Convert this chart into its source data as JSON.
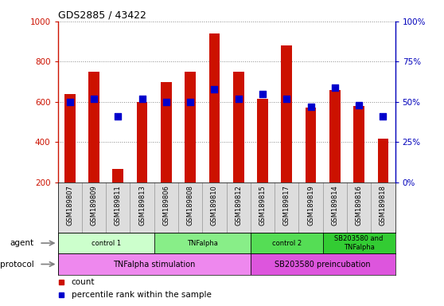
{
  "title": "GDS2885 / 43422",
  "samples": [
    "GSM189807",
    "GSM189809",
    "GSM189811",
    "GSM189813",
    "GSM189806",
    "GSM189808",
    "GSM189810",
    "GSM189812",
    "GSM189815",
    "GSM189817",
    "GSM189819",
    "GSM189814",
    "GSM189816",
    "GSM189818"
  ],
  "counts": [
    640,
    750,
    265,
    600,
    700,
    750,
    940,
    750,
    615,
    880,
    570,
    660,
    580,
    415
  ],
  "percentile_ranks": [
    50,
    52,
    41,
    52,
    50,
    50,
    58,
    52,
    55,
    52,
    47,
    59,
    48,
    41
  ],
  "ylim_left": [
    200,
    1000
  ],
  "ylim_right": [
    0,
    100
  ],
  "yticks_left": [
    200,
    400,
    600,
    800,
    1000
  ],
  "yticks_right": [
    0,
    25,
    50,
    75,
    100
  ],
  "agent_groups": [
    {
      "label": "control 1",
      "start": 0,
      "end": 4,
      "color": "#ccffcc"
    },
    {
      "label": "TNFalpha",
      "start": 4,
      "end": 8,
      "color": "#88ee88"
    },
    {
      "label": "control 2",
      "start": 8,
      "end": 11,
      "color": "#55dd55"
    },
    {
      "label": "SB203580 and\nTNFalpha",
      "start": 11,
      "end": 14,
      "color": "#33cc33"
    }
  ],
  "protocol_groups": [
    {
      "label": "TNFalpha stimulation",
      "start": 0,
      "end": 8,
      "color": "#ee88ee"
    },
    {
      "label": "SB203580 preincubation",
      "start": 8,
      "end": 14,
      "color": "#dd55dd"
    }
  ],
  "bar_color": "#cc1100",
  "dot_color": "#0000cc",
  "grid_color": "#888888",
  "background_color": "#ffffff",
  "left_axis_color": "#cc1100",
  "right_axis_color": "#0000bb",
  "bar_width": 0.45,
  "dot_size": 30,
  "xtick_bg": "#dddddd",
  "agent_label": "agent",
  "protocol_label": "protocol"
}
